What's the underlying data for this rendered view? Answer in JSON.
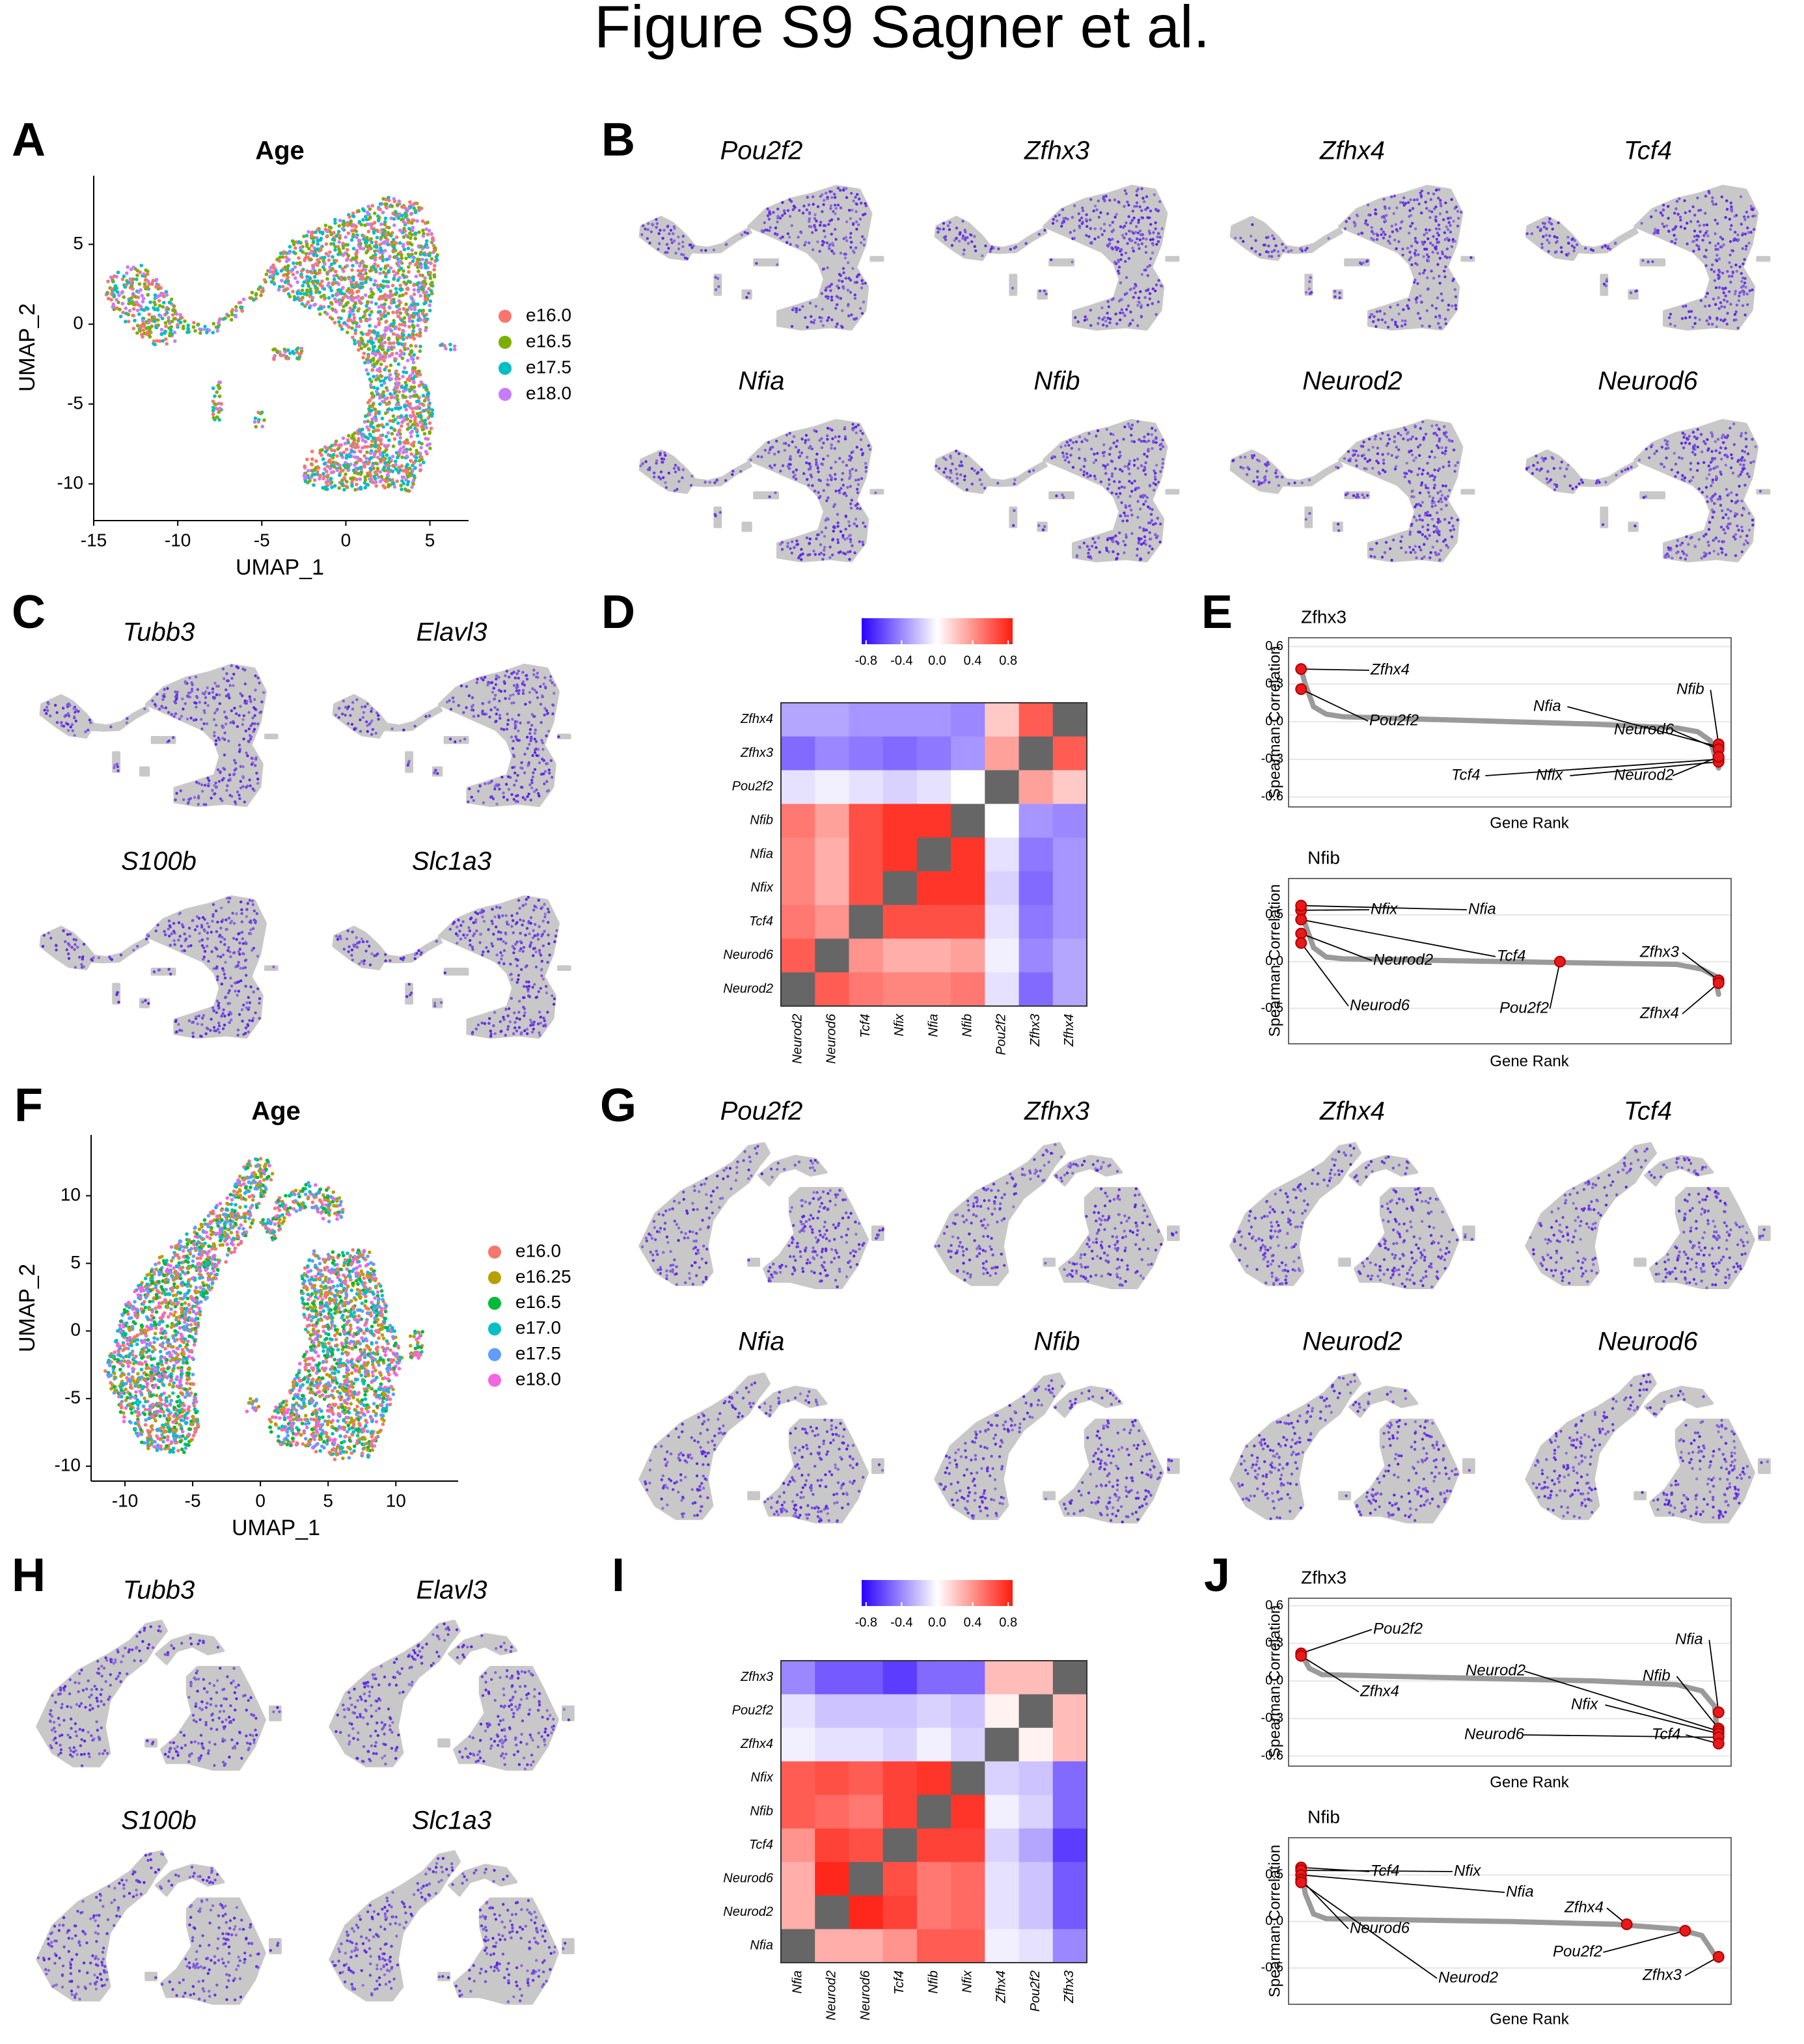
{
  "figure_title": "Figure S9 Sagner et al.",
  "chart_data": [
    {
      "type": "scatter",
      "panel": "A",
      "title": "Age",
      "xlabel": "UMAP_1",
      "ylabel": "UMAP_2",
      "xlim": [
        -15,
        7.3
      ],
      "ylim": [
        -12.3,
        9.3
      ],
      "xticks": [
        -15,
        -10,
        -5,
        0,
        5
      ],
      "yticks": [
        -10,
        -5,
        0,
        5
      ],
      "legend": "right",
      "series": [
        {
          "name": "e16.0",
          "color": "#f8766d"
        },
        {
          "name": "e16.5",
          "color": "#7cae00"
        },
        {
          "name": "e17.5",
          "color": "#00bfc4"
        },
        {
          "name": "e18.0",
          "color": "#c77cff"
        }
      ]
    },
    {
      "type": "feature",
      "panel": "B",
      "genes": [
        "Pou2f2",
        "Zfhx3",
        "Zfhx4",
        "Tcf4",
        "Nfia",
        "Nfib",
        "Neurod2",
        "Neurod6"
      ],
      "low_color": "#c8c8c8",
      "high_color": "#5a1fe6"
    },
    {
      "type": "feature",
      "panel": "C",
      "genes": [
        "Tubb3",
        "Elavl3",
        "S100b",
        "Slc1a3"
      ],
      "low_color": "#c8c8c8",
      "high_color": "#5a1fe6"
    },
    {
      "type": "heatmap",
      "panel": "D",
      "rows": [
        "Zfhx4",
        "Zfhx3",
        "Pou2f2",
        "Nfib",
        "Nfia",
        "Nfix",
        "Tcf4",
        "Neurod6",
        "Neurod2"
      ],
      "columns": [
        "Neurod2",
        "Neurod6",
        "Tcf4",
        "Nfix",
        "Nfia",
        "Nfib",
        "Pou2f2",
        "Zfhx3",
        "Zfhx4"
      ],
      "values": [
        [
          -0.3,
          -0.3,
          -0.35,
          -0.35,
          -0.35,
          -0.4,
          0.2,
          0.6,
          null
        ],
        [
          -0.5,
          -0.4,
          -0.45,
          -0.5,
          -0.45,
          -0.35,
          0.35,
          null,
          0.6
        ],
        [
          -0.1,
          -0.05,
          -0.1,
          -0.15,
          -0.1,
          0,
          null,
          0.35,
          0.2
        ],
        [
          0.5,
          0.35,
          0.65,
          0.75,
          0.75,
          null,
          0,
          -0.35,
          -0.4
        ],
        [
          0.45,
          0.3,
          0.65,
          0.75,
          null,
          0.75,
          -0.1,
          -0.45,
          -0.35
        ],
        [
          0.45,
          0.3,
          0.65,
          null,
          0.75,
          0.75,
          -0.15,
          -0.5,
          -0.35
        ],
        [
          0.5,
          0.4,
          null,
          0.65,
          0.65,
          0.65,
          -0.1,
          -0.45,
          -0.35
        ],
        [
          0.6,
          null,
          0.4,
          0.3,
          0.3,
          0.35,
          -0.05,
          -0.4,
          -0.3
        ],
        [
          null,
          0.6,
          0.5,
          0.45,
          0.45,
          0.5,
          -0.1,
          -0.5,
          -0.3
        ]
      ],
      "clim": [
        -0.85,
        0.85
      ],
      "cticks": [
        -0.8,
        -0.4,
        {
          "value": 0,
          "label": "0.0"
        },
        0.4,
        0.8
      ],
      "colors": [
        "#2a00ff",
        "#ffffff",
        "#ff1a0d"
      ],
      "na_color": "#666666"
    },
    {
      "type": "rank",
      "panel": "E",
      "title": "Zfhx3",
      "xlabel": "Gene Rank",
      "ylabel": "Spearman Correlation",
      "xlim": [
        -0.03,
        1.03
      ],
      "ylim": [
        -0.68,
        0.67
      ],
      "yticks": [
        -0.6,
        -0.3,
        {
          "value": 0,
          "label": "0.0"
        },
        0.3,
        0.6
      ],
      "x": [
        0,
        0.01,
        0.03,
        0.06,
        0.1,
        0.3,
        0.5,
        0.7,
        0.9,
        0.95,
        0.98,
        1
      ],
      "values": [
        0.42,
        0.3,
        0.12,
        0.06,
        0.04,
        0.02,
        0,
        -0.02,
        -0.05,
        -0.08,
        -0.15,
        -0.37
      ],
      "line_color": "#9a9a9a",
      "point_color": "#e8191c",
      "annotations": [
        {
          "label": "Zfhx4",
          "x": 0,
          "value": 0.42
        },
        {
          "label": "Pou2f2",
          "x": 0,
          "value": 0.26
        },
        {
          "label": "Nfia",
          "x": 1,
          "value": -0.2
        },
        {
          "label": "Nfib",
          "x": 1,
          "value": -0.18
        },
        {
          "label": "Neurod6",
          "x": 1,
          "value": -0.22
        },
        {
          "label": "Tcf4",
          "x": 1,
          "value": -0.3
        },
        {
          "label": "Nfix",
          "x": 1,
          "value": -0.32
        },
        {
          "label": "Neurod2",
          "x": 1,
          "value": -0.28
        }
      ]
    },
    {
      "type": "rank",
      "title": "Nfib",
      "xlabel": "Gene Rank",
      "ylabel": "Spearman Correlation",
      "xlim": [
        -0.03,
        1.03
      ],
      "ylim": [
        -0.88,
        0.89
      ],
      "yticks": [
        -0.5,
        {
          "value": 0,
          "label": "0.0"
        },
        0.5
      ],
      "x": [
        0,
        0.01,
        0.03,
        0.06,
        0.1,
        0.5,
        0.9,
        0.96,
        0.99,
        1
      ],
      "values": [
        0.6,
        0.4,
        0.15,
        0.05,
        0.03,
        0,
        -0.03,
        -0.08,
        -0.15,
        -0.35
      ],
      "line_color": "#9a9a9a",
      "point_color": "#e8191c",
      "annotations": [
        {
          "label": "Nfix",
          "x": 0,
          "value": 0.55
        },
        {
          "label": "Nfia",
          "x": 0,
          "value": 0.6
        },
        {
          "label": "Tcf4",
          "x": 0,
          "value": 0.45
        },
        {
          "label": "Neurod2",
          "x": 0,
          "value": 0.3
        },
        {
          "label": "Neurod6",
          "x": 0,
          "value": 0.2
        },
        {
          "label": "Pou2f2",
          "x": 0.62,
          "value": 0
        },
        {
          "label": "Zfhx3",
          "x": 1,
          "value": -0.2
        },
        {
          "label": "Zfhx4",
          "x": 1,
          "value": -0.23
        }
      ]
    },
    {
      "type": "scatter",
      "panel": "F",
      "title": "Age",
      "xlabel": "UMAP_1",
      "ylabel": "UMAP_2",
      "xlim": [
        -12.5,
        14.6
      ],
      "ylim": [
        -11.1,
        14.5
      ],
      "xticks": [
        -10,
        -5,
        0,
        5,
        10
      ],
      "yticks": [
        -10,
        -5,
        0,
        5,
        10
      ],
      "legend": "right",
      "series": [
        {
          "name": "e16.0",
          "color": "#f8766d"
        },
        {
          "name": "e16.25",
          "color": "#b79f00"
        },
        {
          "name": "e16.5",
          "color": "#00ba38"
        },
        {
          "name": "e17.0",
          "color": "#00bfc4"
        },
        {
          "name": "e17.5",
          "color": "#619cff"
        },
        {
          "name": "e18.0",
          "color": "#f564e3"
        }
      ]
    },
    {
      "type": "feature",
      "panel": "G",
      "genes": [
        "Pou2f2",
        "Zfhx3",
        "Zfhx4",
        "Tcf4",
        "Nfia",
        "Nfib",
        "Neurod2",
        "Neurod6"
      ],
      "low_color": "#c8c8c8",
      "high_color": "#5a1fe6"
    },
    {
      "type": "feature",
      "panel": "H",
      "genes": [
        "Tubb3",
        "Elavl3",
        "S100b",
        "Slc1a3"
      ],
      "low_color": "#c8c8c8",
      "high_color": "#5a1fe6"
    },
    {
      "type": "heatmap",
      "panel": "I",
      "rows": [
        "Zfhx3",
        "Pou2f2",
        "Zfhx4",
        "Nfix",
        "Nfib",
        "Tcf4",
        "Neurod6",
        "Neurod2",
        "Nfia"
      ],
      "columns": [
        "Nfia",
        "Neurod2",
        "Neurod6",
        "Tcf4",
        "Nfib",
        "Nfix",
        "Zfhx4",
        "Pou2f2",
        "Zfhx3"
      ],
      "values": [
        [
          -0.4,
          -0.55,
          -0.55,
          -0.65,
          -0.5,
          -0.5,
          0.25,
          0.25,
          null
        ],
        [
          -0.1,
          -0.2,
          -0.2,
          -0.2,
          -0.15,
          -0.2,
          0.05,
          null,
          0.25
        ],
        [
          -0.05,
          -0.1,
          -0.1,
          -0.15,
          -0.05,
          -0.15,
          null,
          0.05,
          0.25
        ],
        [
          0.6,
          0.65,
          0.6,
          0.7,
          0.75,
          null,
          -0.15,
          -0.2,
          -0.5
        ],
        [
          0.6,
          0.55,
          0.5,
          0.7,
          null,
          0.75,
          -0.05,
          -0.15,
          -0.5
        ],
        [
          0.4,
          0.7,
          0.65,
          null,
          0.7,
          0.7,
          -0.15,
          -0.3,
          -0.65
        ],
        [
          0.3,
          0.8,
          null,
          0.65,
          0.5,
          0.55,
          -0.1,
          -0.2,
          -0.55
        ],
        [
          0.3,
          null,
          0.8,
          0.7,
          0.5,
          0.55,
          -0.1,
          -0.2,
          -0.55
        ],
        [
          null,
          0.3,
          0.3,
          0.4,
          0.6,
          0.6,
          -0.05,
          -0.1,
          -0.4
        ]
      ],
      "clim": [
        -0.85,
        0.85
      ],
      "cticks": [
        -0.8,
        -0.4,
        {
          "value": 0,
          "label": "0.0"
        },
        0.4,
        0.8
      ],
      "colors": [
        "#2a00ff",
        "#ffffff",
        "#ff1a0d"
      ],
      "na_color": "#666666"
    },
    {
      "type": "rank",
      "panel": "J",
      "title": "Zfhx3",
      "xlabel": "Gene Rank",
      "ylabel": "Spearman Correlation",
      "xlim": [
        -0.03,
        1.03
      ],
      "ylim": [
        -0.68,
        0.66
      ],
      "yticks": [
        -0.6,
        -0.3,
        {
          "value": 0,
          "label": "0.0"
        },
        0.3,
        0.6
      ],
      "x": [
        0,
        0.02,
        0.05,
        0.3,
        0.7,
        0.9,
        0.96,
        0.99,
        1
      ],
      "values": [
        0.22,
        0.1,
        0.05,
        0.03,
        0,
        -0.03,
        -0.08,
        -0.2,
        -0.5
      ],
      "line_color": "#9a9a9a",
      "point_color": "#e8191c",
      "annotations": [
        {
          "label": "Pou2f2",
          "x": 0,
          "value": 0.22
        },
        {
          "label": "Zfhx4",
          "x": 0,
          "value": 0.2
        },
        {
          "label": "Nfia",
          "x": 1,
          "value": -0.25
        },
        {
          "label": "Nfib",
          "x": 1,
          "value": -0.38
        },
        {
          "label": "Neurod2",
          "x": 1,
          "value": -0.4
        },
        {
          "label": "Nfix",
          "x": 1,
          "value": -0.42
        },
        {
          "label": "Neurod6",
          "x": 1,
          "value": -0.45
        },
        {
          "label": "Tcf4",
          "x": 1,
          "value": -0.5
        }
      ]
    },
    {
      "type": "rank",
      "title": "Nfib",
      "xlabel": "Gene Rank",
      "ylabel": "Spearman Correlation",
      "xlim": [
        -0.03,
        1.03
      ],
      "ylim": [
        -0.89,
        0.9
      ],
      "yticks": [
        -0.5,
        {
          "value": 0,
          "label": "0.0"
        },
        0.5
      ],
      "x": [
        0,
        0.01,
        0.03,
        0.06,
        0.5,
        0.75,
        0.9,
        0.96,
        1
      ],
      "values": [
        0.58,
        0.3,
        0.08,
        0.03,
        0,
        -0.03,
        -0.08,
        -0.15,
        -0.42
      ],
      "line_color": "#9a9a9a",
      "point_color": "#e8191c",
      "annotations": [
        {
          "label": "Tcf4",
          "x": 0,
          "value": 0.58
        },
        {
          "label": "Nfix",
          "x": 0,
          "value": 0.55
        },
        {
          "label": "Nfia",
          "x": 0,
          "value": 0.5
        },
        {
          "label": "Neurod6",
          "x": 0,
          "value": 0.45
        },
        {
          "label": "Neurod2",
          "x": 0,
          "value": 0.42
        },
        {
          "label": "Zfhx4",
          "x": 0.78,
          "value": -0.03
        },
        {
          "label": "Pou2f2",
          "x": 0.92,
          "value": -0.1
        },
        {
          "label": "Zfhx3",
          "x": 1,
          "value": -0.38
        }
      ]
    }
  ]
}
